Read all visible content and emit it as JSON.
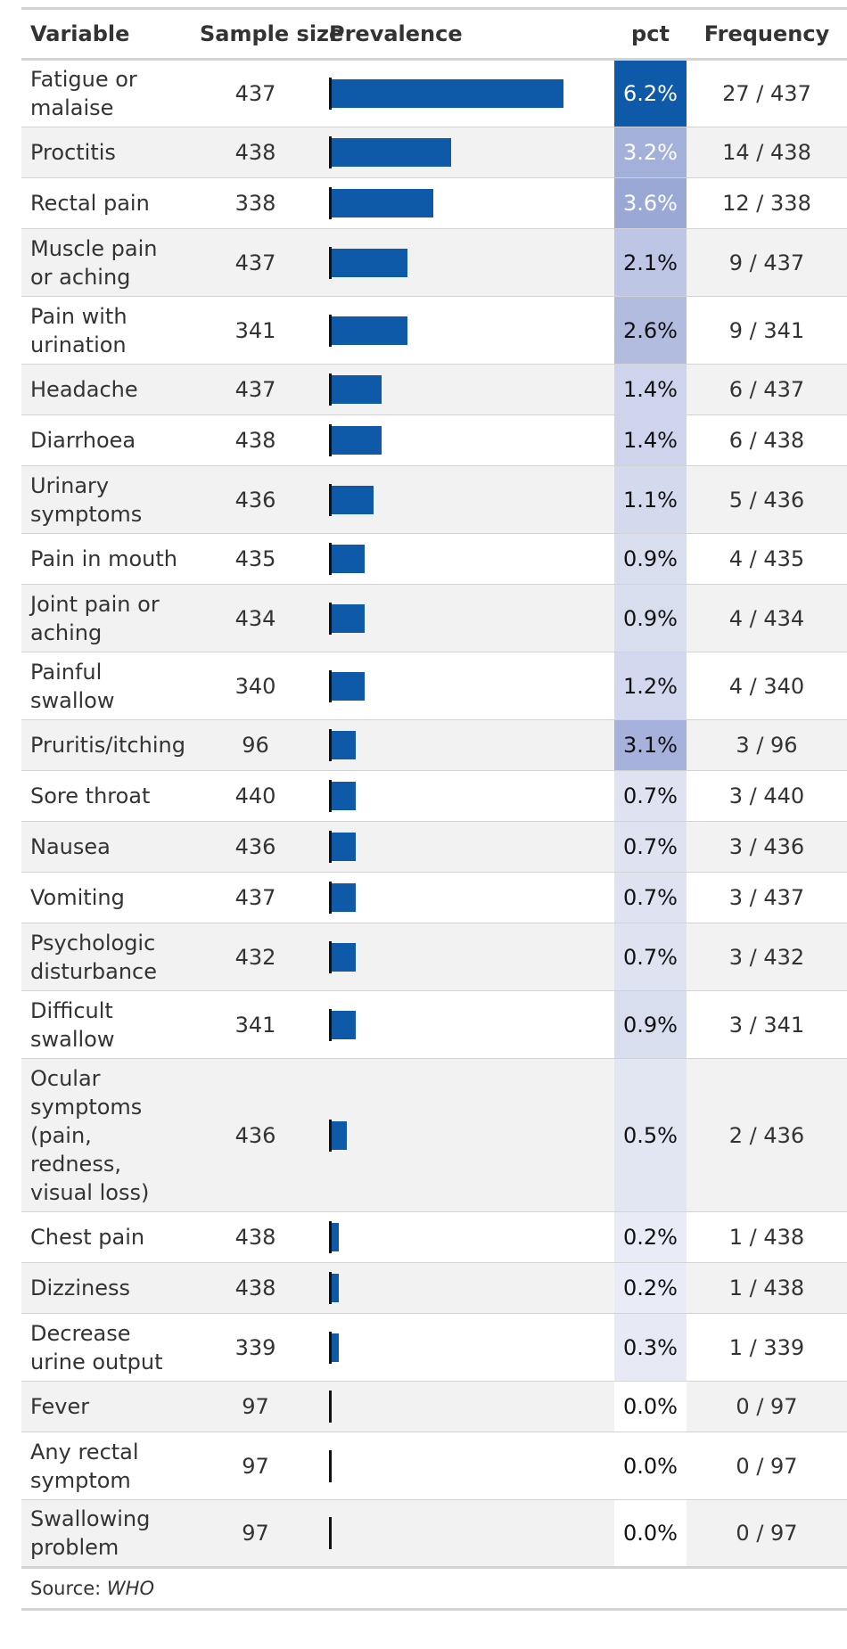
{
  "chart_data": {
    "type": "table",
    "columns": [
      "Variable",
      "Sample size",
      "Prevalence",
      "pct",
      "Frequency"
    ],
    "rows": [
      {
        "variable": "Fatigue or malaise",
        "n": 437,
        "pct": 6.2,
        "pct_label": "6.2%",
        "frequency": "27 / 437",
        "count": 27
      },
      {
        "variable": "Proctitis",
        "n": 438,
        "pct": 3.2,
        "pct_label": "3.2%",
        "frequency": "14 / 438",
        "count": 14
      },
      {
        "variable": "Rectal pain",
        "n": 338,
        "pct": 3.6,
        "pct_label": "3.6%",
        "frequency": "12 / 338",
        "count": 12
      },
      {
        "variable": "Muscle pain or aching",
        "n": 437,
        "pct": 2.1,
        "pct_label": "2.1%",
        "frequency": "9 / 437",
        "count": 9
      },
      {
        "variable": "Pain with urination",
        "n": 341,
        "pct": 2.6,
        "pct_label": "2.6%",
        "frequency": "9 / 341",
        "count": 9
      },
      {
        "variable": "Headache",
        "n": 437,
        "pct": 1.4,
        "pct_label": "1.4%",
        "frequency": "6 / 437",
        "count": 6
      },
      {
        "variable": "Diarrhoea",
        "n": 438,
        "pct": 1.4,
        "pct_label": "1.4%",
        "frequency": "6 / 438",
        "count": 6
      },
      {
        "variable": "Urinary symptoms",
        "n": 436,
        "pct": 1.1,
        "pct_label": "1.1%",
        "frequency": "5 / 436",
        "count": 5
      },
      {
        "variable": "Pain in mouth",
        "n": 435,
        "pct": 0.9,
        "pct_label": "0.9%",
        "frequency": "4 / 435",
        "count": 4
      },
      {
        "variable": "Joint pain or aching",
        "n": 434,
        "pct": 0.9,
        "pct_label": "0.9%",
        "frequency": "4 / 434",
        "count": 4
      },
      {
        "variable": "Painful swallow",
        "n": 340,
        "pct": 1.2,
        "pct_label": "1.2%",
        "frequency": "4 / 340",
        "count": 4
      },
      {
        "variable": "Pruritis/itching",
        "n": 96,
        "pct": 3.1,
        "pct_label": "3.1%",
        "frequency": "3 / 96",
        "count": 3
      },
      {
        "variable": "Sore throat",
        "n": 440,
        "pct": 0.7,
        "pct_label": "0.7%",
        "frequency": "3 / 440",
        "count": 3
      },
      {
        "variable": "Nausea",
        "n": 436,
        "pct": 0.7,
        "pct_label": "0.7%",
        "frequency": "3 / 436",
        "count": 3
      },
      {
        "variable": "Vomiting",
        "n": 437,
        "pct": 0.7,
        "pct_label": "0.7%",
        "frequency": "3 / 437",
        "count": 3
      },
      {
        "variable": "Psychologic disturbance",
        "n": 432,
        "pct": 0.7,
        "pct_label": "0.7%",
        "frequency": "3 / 432",
        "count": 3
      },
      {
        "variable": "Difficult swallow",
        "n": 341,
        "pct": 0.9,
        "pct_label": "0.9%",
        "frequency": "3 / 341",
        "count": 3
      },
      {
        "variable": "Ocular symptoms (pain, redness, visual loss)",
        "n": 436,
        "pct": 0.5,
        "pct_label": "0.5%",
        "frequency": "2 / 436",
        "count": 2
      },
      {
        "variable": "Chest pain",
        "n": 438,
        "pct": 0.2,
        "pct_label": "0.2%",
        "frequency": "1 / 438",
        "count": 1
      },
      {
        "variable": "Dizziness",
        "n": 438,
        "pct": 0.2,
        "pct_label": "0.2%",
        "frequency": "1 / 438",
        "count": 1
      },
      {
        "variable": "Decrease urine output",
        "n": 339,
        "pct": 0.3,
        "pct_label": "0.3%",
        "frequency": "1 / 339",
        "count": 1
      },
      {
        "variable": "Fever",
        "n": 97,
        "pct": 0.0,
        "pct_label": "0.0%",
        "frequency": "0 / 97",
        "count": 0
      },
      {
        "variable": "Any rectal symptom",
        "n": 97,
        "pct": 0.0,
        "pct_label": "0.0%",
        "frequency": "0 / 97",
        "count": 0
      },
      {
        "variable": "Swallowing problem",
        "n": 97,
        "pct": 0.0,
        "pct_label": "0.0%",
        "frequency": "0 / 97",
        "count": 0
      }
    ],
    "source_prefix": "Source:",
    "source_name": "WHO",
    "colors": {
      "bar": "#0f5aa8",
      "pct_low": "#ffffff",
      "pct_high": "#0f5aa8",
      "stripe": "#f2f2f2",
      "rule": "#d3d3d3"
    }
  }
}
